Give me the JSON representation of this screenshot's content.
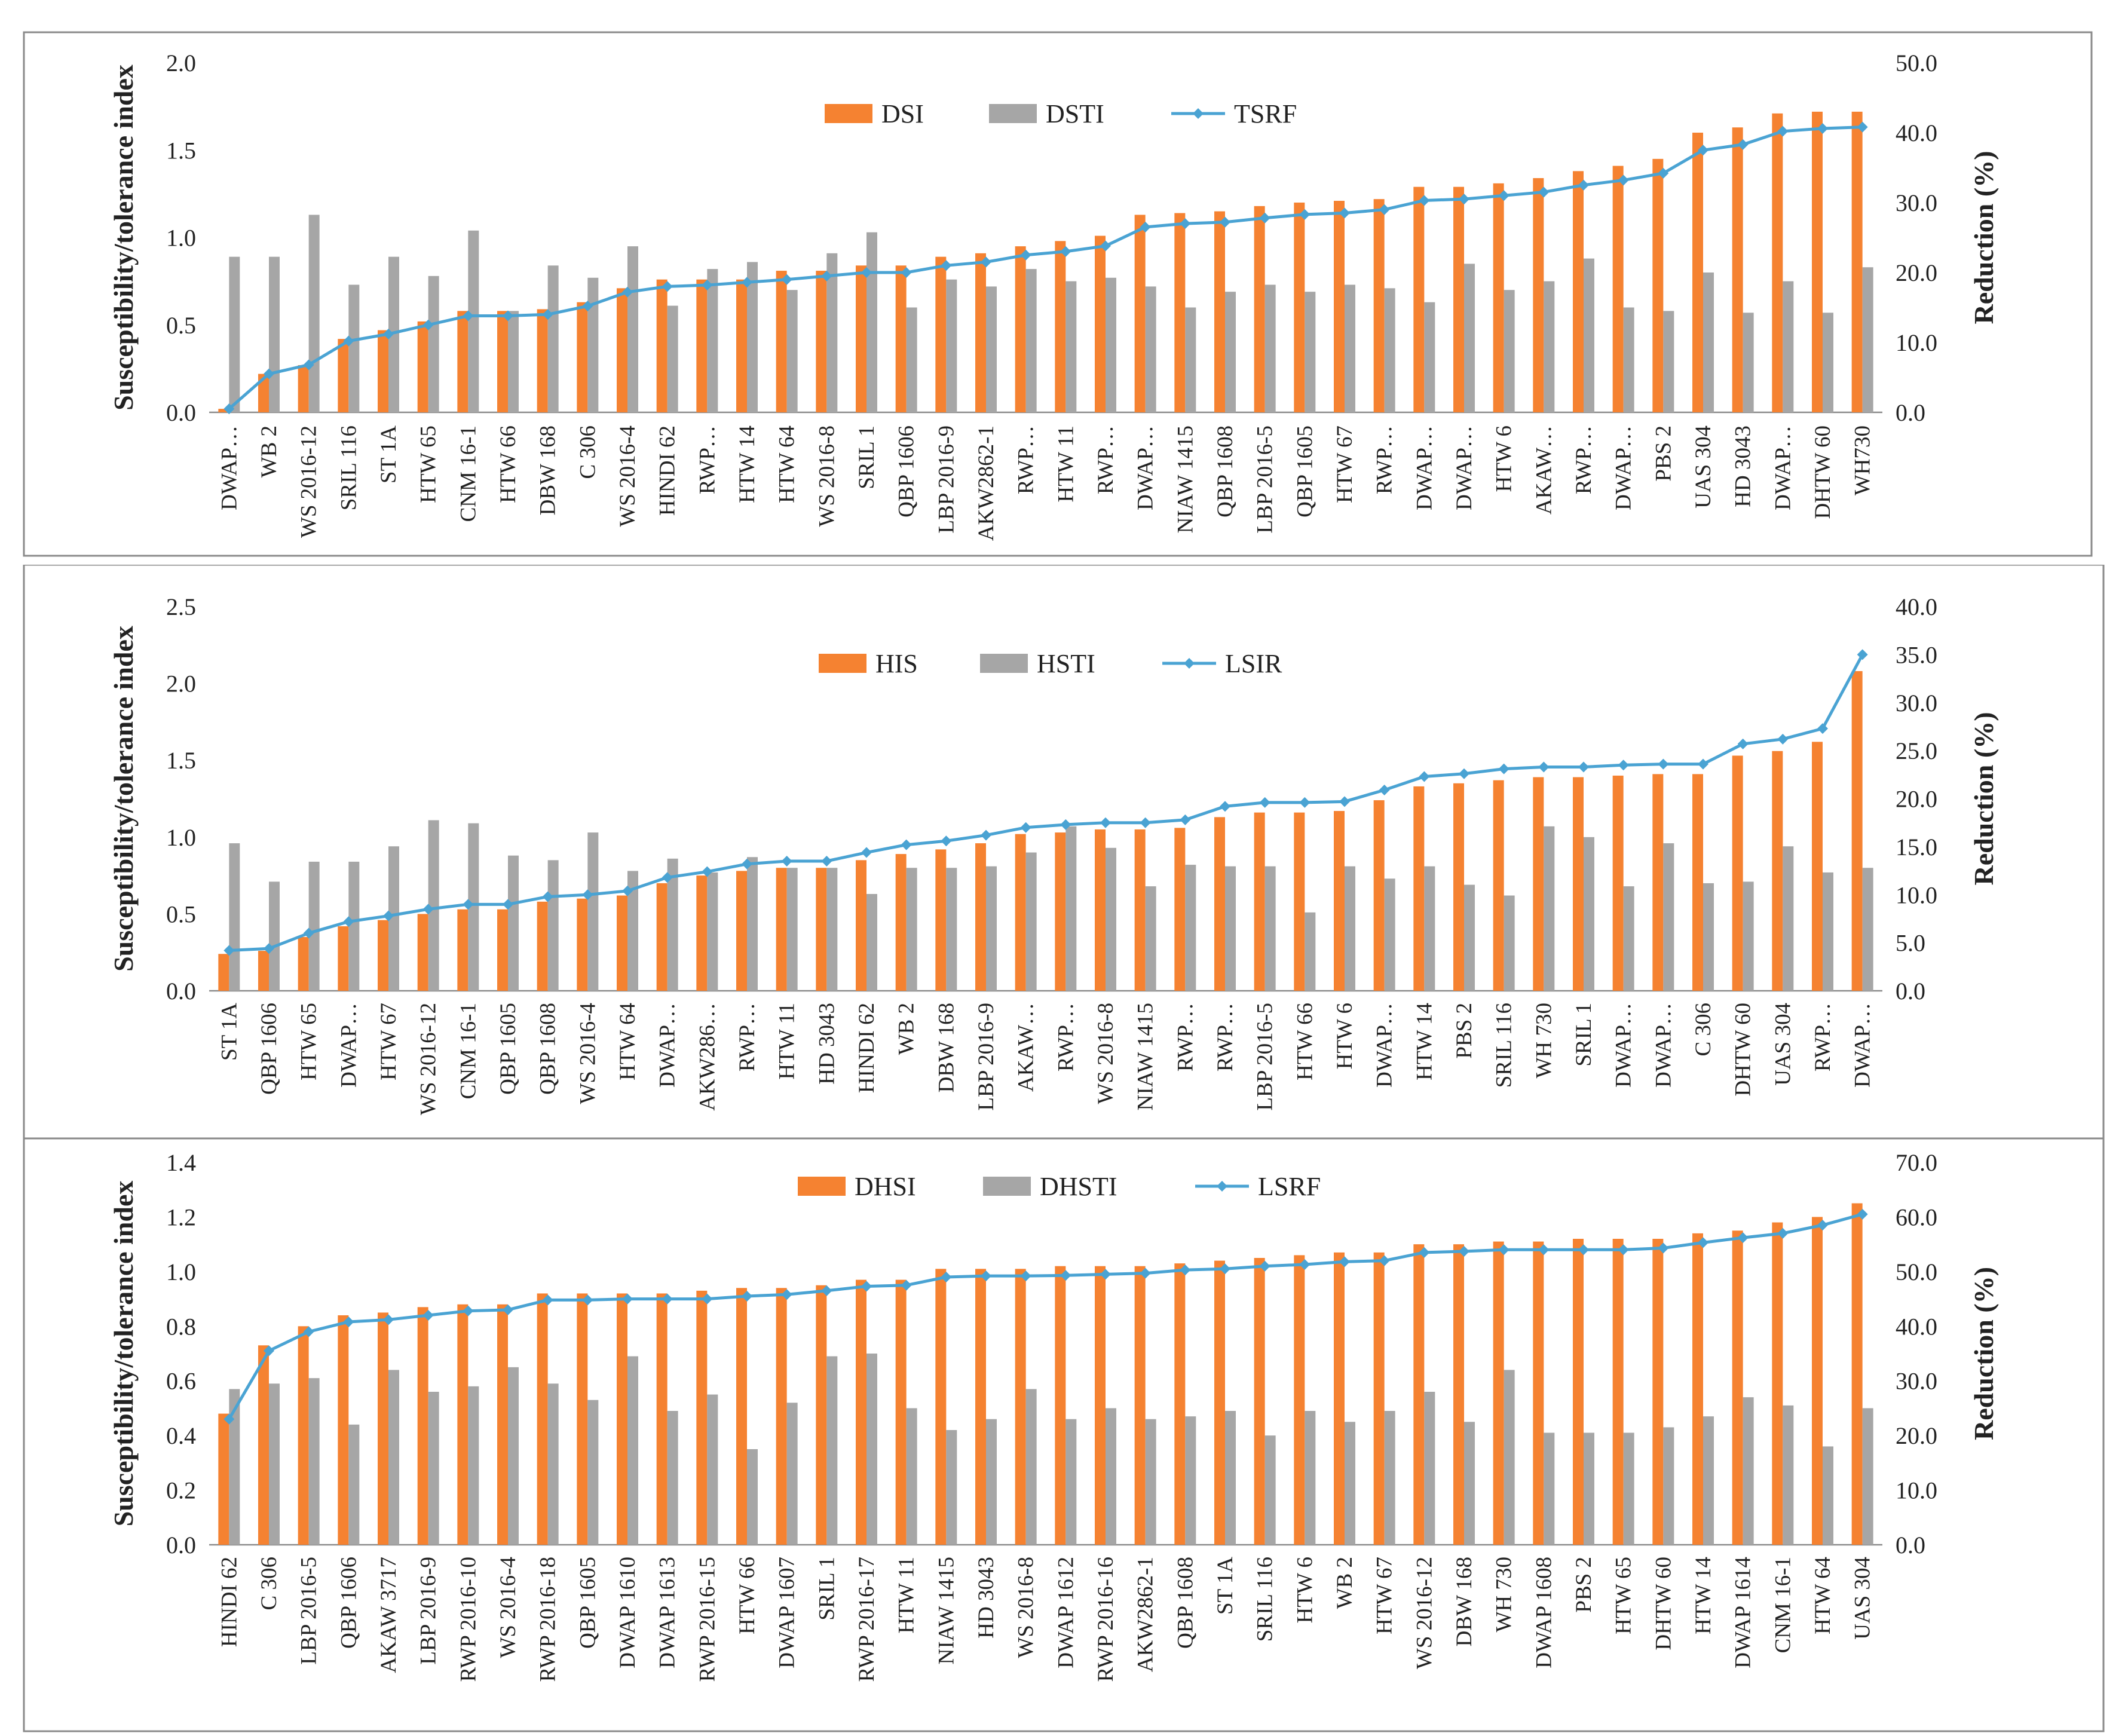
{
  "chart_data": [
    {
      "type": "bar+line",
      "legend": {
        "bar1": "DSI",
        "bar2": "DSTI",
        "line": "TSRF"
      },
      "ylabel_left": "Susceptibility/tolerance index",
      "ylabel_right": "Reduction (%)",
      "ylim_left": [
        0,
        2.0
      ],
      "yticks_left": [
        "0.0",
        "0.5",
        "1.0",
        "1.5",
        "2.0"
      ],
      "ylim_right": [
        0,
        50
      ],
      "yticks_right": [
        "0.0",
        "10.0",
        "20.0",
        "30.0",
        "40.0",
        "50.0"
      ],
      "colors": {
        "bar1": "#f58231",
        "bar2": "#a6a6a6",
        "line": "#4aa3d3"
      },
      "categories": [
        "DWAP…",
        "WB 2",
        "WS 2016-12",
        "SRIL 116",
        "ST 1A",
        "HTW 65",
        "CNM 16-1",
        "HTW 66",
        "DBW 168",
        "C 306",
        "WS 2016-4",
        "HINDI 62",
        "RWP…",
        "HTW 14",
        "HTW 64",
        "WS 2016-8",
        "SRIL 1",
        "QBP 1606",
        "LBP 2016-9",
        "AKW2862-1",
        "RWP…",
        "HTW 11",
        "RWP…",
        "DWAP…",
        "NIAW 1415",
        "QBP 1608",
        "LBP 2016-5",
        "QBP 1605",
        "HTW 67",
        "RWP…",
        "DWAP…",
        "DWAP…",
        "HTW 6",
        "AKAW…",
        "RWP…",
        "DWAP…",
        "PBS 2",
        "UAS 304",
        "HD 3043",
        "DWAP…",
        "DHTW 60",
        "WH730"
      ],
      "bar1": [
        0.02,
        0.22,
        0.27,
        0.42,
        0.47,
        0.52,
        0.58,
        0.58,
        0.59,
        0.63,
        0.71,
        0.76,
        0.76,
        0.76,
        0.81,
        0.81,
        0.84,
        0.84,
        0.89,
        0.91,
        0.95,
        0.98,
        1.01,
        1.13,
        1.14,
        1.15,
        1.18,
        1.2,
        1.21,
        1.22,
        1.29,
        1.29,
        1.31,
        1.34,
        1.38,
        1.41,
        1.45,
        1.6,
        1.63,
        1.71,
        1.72,
        1.72
      ],
      "bar2": [
        0.89,
        0.89,
        1.13,
        0.73,
        0.89,
        0.78,
        1.04,
        0.58,
        0.84,
        0.77,
        0.95,
        0.61,
        0.82,
        0.86,
        0.7,
        0.91,
        1.03,
        0.6,
        0.76,
        0.72,
        0.82,
        0.75,
        0.77,
        0.72,
        0.6,
        0.69,
        0.73,
        0.69,
        0.73,
        0.71,
        0.63,
        0.85,
        0.7,
        0.75,
        0.88,
        0.6,
        0.58,
        0.8,
        0.57,
        0.75,
        0.57,
        0.83
      ],
      "line": [
        0.5,
        5.5,
        6.8,
        10.2,
        11.2,
        12.5,
        13.8,
        13.8,
        14.0,
        15.2,
        17.2,
        18.0,
        18.2,
        18.6,
        19.0,
        19.5,
        20.0,
        20.0,
        21.0,
        21.5,
        22.5,
        23.0,
        23.8,
        26.5,
        27.0,
        27.2,
        27.8,
        28.3,
        28.5,
        29.0,
        30.3,
        30.5,
        31.0,
        31.5,
        32.5,
        33.2,
        34.2,
        37.5,
        38.3,
        40.2,
        40.6,
        40.8
      ]
    },
    {
      "type": "bar+line",
      "legend": {
        "bar1": "HIS",
        "bar2": "HSTI",
        "line": "LSIR"
      },
      "ylabel_left": "Susceptibility/tolerance index",
      "ylabel_right": "Reduction (%)",
      "ylim_left": [
        0,
        2.5
      ],
      "yticks_left": [
        "0.0",
        "0.5",
        "1.0",
        "1.5",
        "2.0",
        "2.5"
      ],
      "ylim_right": [
        0,
        40
      ],
      "yticks_right": [
        "0.0",
        "5.0",
        "10.0",
        "15.0",
        "20.0",
        "25.0",
        "30.0",
        "35.0",
        "40.0"
      ],
      "colors": {
        "bar1": "#f58231",
        "bar2": "#a6a6a6",
        "line": "#4aa3d3"
      },
      "categories": [
        "ST 1A",
        "QBP 1606",
        "HTW 65",
        "DWAP…",
        "HTW 67",
        "WS 2016-12",
        "CNM 16-1",
        "QBP 1605",
        "QBP 1608",
        "WS 2016-4",
        "HTW 64",
        "DWAP…",
        "AKW286…",
        "RWP…",
        "HTW 11",
        "HD 3043",
        "HINDI 62",
        "WB 2",
        "DBW 168",
        "LBP 2016-9",
        "AKAW…",
        "RWP…",
        "WS 2016-8",
        "NIAW 1415",
        "RWP…",
        "RWP…",
        "LBP 2016-5",
        "HTW 66",
        "HTW 6",
        "DWAP…",
        "HTW 14",
        "PBS 2",
        "SRIL 116",
        "WH 730",
        "SRIL 1",
        "DWAP…",
        "DWAP…",
        "C 306",
        "DHTW 60",
        "UAS 304",
        "RWP…",
        "DWAP…"
      ],
      "bar1": [
        0.24,
        0.26,
        0.35,
        0.42,
        0.46,
        0.5,
        0.53,
        0.53,
        0.58,
        0.6,
        0.62,
        0.7,
        0.75,
        0.78,
        0.8,
        0.8,
        0.85,
        0.89,
        0.92,
        0.96,
        1.02,
        1.03,
        1.05,
        1.05,
        1.06,
        1.13,
        1.16,
        1.16,
        1.17,
        1.24,
        1.33,
        1.35,
        1.37,
        1.39,
        1.39,
        1.4,
        1.41,
        1.41,
        1.53,
        1.56,
        1.62,
        2.08
      ],
      "bar2": [
        0.96,
        0.71,
        0.84,
        0.84,
        0.94,
        1.11,
        1.09,
        0.88,
        0.85,
        1.03,
        0.78,
        0.86,
        0.77,
        0.87,
        0.8,
        0.8,
        0.63,
        0.8,
        0.8,
        0.81,
        0.9,
        1.07,
        0.93,
        0.68,
        0.82,
        0.81,
        0.81,
        0.51,
        0.81,
        0.73,
        0.81,
        0.69,
        0.62,
        1.07,
        1.0,
        0.68,
        0.96,
        0.7,
        0.71,
        0.94,
        0.77,
        0.8
      ],
      "line": [
        4.2,
        4.4,
        6.0,
        7.2,
        7.8,
        8.5,
        9.0,
        9.0,
        9.8,
        10.0,
        10.4,
        11.8,
        12.4,
        13.2,
        13.5,
        13.5,
        14.4,
        15.2,
        15.6,
        16.2,
        17.0,
        17.3,
        17.5,
        17.5,
        17.8,
        19.2,
        19.6,
        19.6,
        19.7,
        20.9,
        22.3,
        22.6,
        23.1,
        23.3,
        23.3,
        23.5,
        23.6,
        23.6,
        25.7,
        26.2,
        27.3,
        35.0
      ]
    },
    {
      "type": "bar+line",
      "legend": {
        "bar1": "DHSI",
        "bar2": "DHSTI",
        "line": "LSRF"
      },
      "ylabel_left": "Susceptibility/tolerance index",
      "ylabel_right": "Reduction (%)",
      "ylim_left": [
        0,
        1.4
      ],
      "yticks_left": [
        "0.0",
        "0.2",
        "0.4",
        "0.6",
        "0.8",
        "1.0",
        "1.2",
        "1.4"
      ],
      "ylim_right": [
        0,
        70
      ],
      "yticks_right": [
        "0.0",
        "10.0",
        "20.0",
        "30.0",
        "40.0",
        "50.0",
        "60.0",
        "70.0"
      ],
      "colors": {
        "bar1": "#f58231",
        "bar2": "#a6a6a6",
        "line": "#4aa3d3"
      },
      "categories": [
        "HINDI 62",
        "C 306",
        "LBP 2016-5",
        "QBP 1606",
        "AKAW 3717",
        "LBP 2016-9",
        "RWP 2016-10",
        "WS 2016-4",
        "RWP 2016-18",
        "QBP 1605",
        "DWAP 1610",
        "DWAP 1613",
        "RWP 2016-15",
        "HTW 66",
        "DWAP 1607",
        "SRIL 1",
        "RWP 2016-17",
        "HTW 11",
        "NIAW 1415",
        "HD 3043",
        "WS 2016-8",
        "DWAP 1612",
        "RWP 2016-16",
        "AKW2862-1",
        "QBP 1608",
        "ST 1A",
        "SRIL 116",
        "HTW 6",
        "WB 2",
        "HTW 67",
        "WS 2016-12",
        "DBW 168",
        "WH 730",
        "DWAP 1608",
        "PBS 2",
        "HTW 65",
        "DHTW 60",
        "HTW 14",
        "DWAP 1614",
        "CNM 16-1",
        "HTW 64",
        "UAS 304"
      ],
      "bar1": [
        0.48,
        0.73,
        0.8,
        0.84,
        0.85,
        0.87,
        0.88,
        0.88,
        0.92,
        0.92,
        0.92,
        0.92,
        0.93,
        0.94,
        0.94,
        0.95,
        0.97,
        0.97,
        1.01,
        1.01,
        1.01,
        1.02,
        1.02,
        1.02,
        1.03,
        1.04,
        1.05,
        1.06,
        1.07,
        1.07,
        1.1,
        1.1,
        1.11,
        1.11,
        1.12,
        1.12,
        1.12,
        1.14,
        1.15,
        1.18,
        1.2,
        1.25
      ],
      "bar2": [
        0.57,
        0.59,
        0.61,
        0.44,
        0.64,
        0.56,
        0.58,
        0.65,
        0.59,
        0.53,
        0.69,
        0.49,
        0.55,
        0.35,
        0.52,
        0.69,
        0.7,
        0.5,
        0.42,
        0.46,
        0.57,
        0.46,
        0.5,
        0.46,
        0.47,
        0.49,
        0.4,
        0.49,
        0.45,
        0.49,
        0.56,
        0.45,
        0.64,
        0.41,
        0.41,
        0.41,
        0.43,
        0.47,
        0.54,
        0.51,
        0.36,
        0.5
      ],
      "line": [
        23.0,
        35.5,
        39.0,
        40.8,
        41.2,
        42.0,
        42.8,
        43.0,
        44.8,
        44.8,
        45.0,
        45.0,
        45.0,
        45.5,
        45.8,
        46.5,
        47.3,
        47.5,
        49.0,
        49.2,
        49.2,
        49.3,
        49.5,
        49.7,
        50.3,
        50.5,
        51.0,
        51.3,
        51.8,
        52.0,
        53.5,
        53.7,
        54.0,
        54.0,
        54.0,
        54.0,
        54.3,
        55.3,
        56.2,
        57.0,
        58.5,
        60.5
      ]
    }
  ]
}
